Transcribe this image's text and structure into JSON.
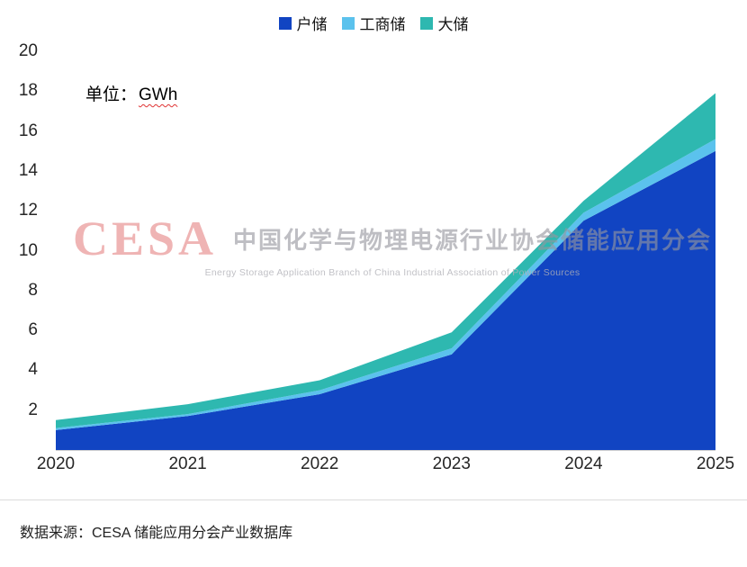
{
  "legend": [
    {
      "label": "户储",
      "color": "#1144C2"
    },
    {
      "label": "工商储",
      "color": "#5BC2ED"
    },
    {
      "label": "大储",
      "color": "#2EB8B0"
    }
  ],
  "unit": {
    "prefix": "单位：",
    "value": "GWh"
  },
  "watermark": {
    "acronym": "CESA",
    "title": "中国化学与物理电源行业协会储能应用分会",
    "subtitle": "Energy Storage Application Branch of China Industrial Association of Power Sources"
  },
  "source": "数据来源：CESA 储能应用分会产业数据库",
  "chart_data": {
    "type": "area",
    "stacked": true,
    "x": [
      "2020",
      "2021",
      "2022",
      "2023",
      "2024",
      "2025"
    ],
    "series": [
      {
        "name": "户储",
        "color": "#1144C2",
        "values": [
          1.0,
          1.7,
          2.8,
          4.8,
          11.5,
          15.0
        ]
      },
      {
        "name": "工商储",
        "color": "#5BC2ED",
        "values": [
          0.1,
          0.1,
          0.2,
          0.3,
          0.4,
          0.6
        ]
      },
      {
        "name": "大储",
        "color": "#2EB8B0",
        "values": [
          0.4,
          0.5,
          0.5,
          0.8,
          0.6,
          2.3
        ]
      }
    ],
    "totals": [
      1.5,
      2.3,
      3.5,
      5.9,
      12.5,
      17.9
    ],
    "ylabel": "GWh",
    "ylim": [
      0,
      20
    ],
    "ytick_step": 2,
    "grid": false,
    "legend_position": "top-center"
  }
}
